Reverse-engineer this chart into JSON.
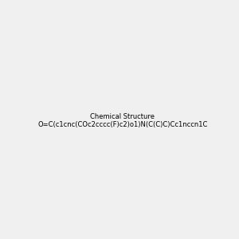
{
  "smiles": "O=C(c1cnc(COc2cccc(F)c2)o1)N(C(C)C)Cc1nccn1C",
  "image_size": 300,
  "background_color": "#f0f0f0",
  "bond_color": "black",
  "atom_colors": {
    "N": "blue",
    "O": "red",
    "F": "green"
  }
}
